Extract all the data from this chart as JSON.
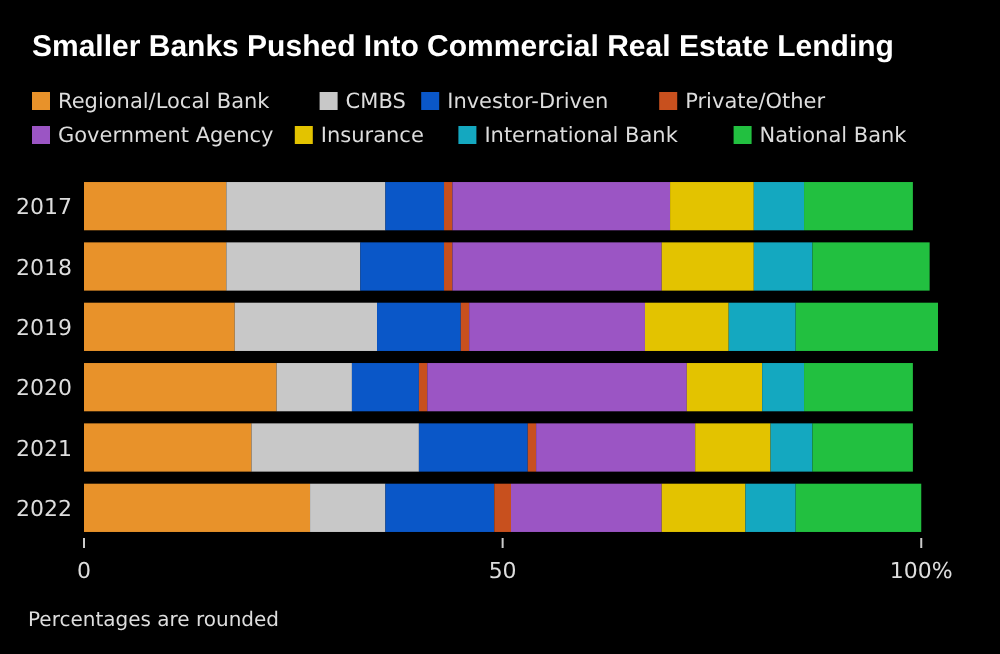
{
  "chart_data": {
    "type": "bar",
    "orientation": "horizontal",
    "stacked": true,
    "title": "Smaller Banks Pushed Into Commercial Real Estate Lending",
    "categories": [
      "2017",
      "2018",
      "2019",
      "2020",
      "2021",
      "2022"
    ],
    "series": [
      {
        "name": "Regional/Local Bank",
        "color": "#e8922a",
        "values": [
          17,
          17,
          18,
          23,
          20,
          27
        ]
      },
      {
        "name": "CMBS",
        "color": "#c8c8c8",
        "values": [
          19,
          16,
          17,
          9,
          20,
          9
        ]
      },
      {
        "name": "Investor-Driven",
        "color": "#0a57c8",
        "values": [
          7,
          10,
          10,
          8,
          13,
          13
        ]
      },
      {
        "name": "Private/Other",
        "color": "#c8501e",
        "values": [
          1,
          1,
          1,
          1,
          1,
          2
        ]
      },
      {
        "name": "Government Agency",
        "color": "#9b55c4",
        "values": [
          26,
          25,
          21,
          31,
          19,
          18
        ]
      },
      {
        "name": "Insurance",
        "color": "#e3c300",
        "values": [
          10,
          11,
          10,
          9,
          9,
          10
        ]
      },
      {
        "name": "International Bank",
        "color": "#14a8c0",
        "values": [
          6,
          7,
          8,
          5,
          5,
          6
        ]
      },
      {
        "name": "National Bank",
        "color": "#22c040",
        "values": [
          13,
          14,
          17,
          13,
          12,
          15
        ]
      }
    ],
    "xlim": [
      0,
      102
    ],
    "xticks": [
      0,
      50,
      {
        "value": 100,
        "label": "100%"
      }
    ],
    "grid": false,
    "legend": "top",
    "annotations": [
      "Percentages are rounded"
    ]
  }
}
